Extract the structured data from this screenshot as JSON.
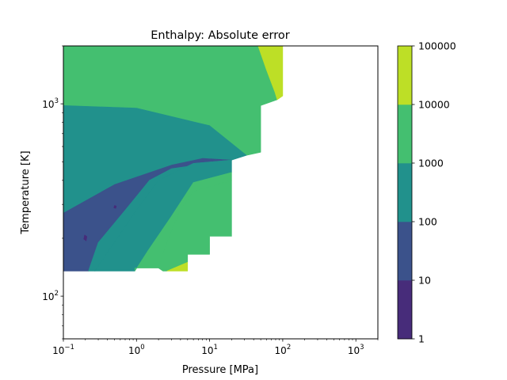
{
  "chart_data": {
    "type": "contourf",
    "title": "Enthalpy: Absolute error",
    "xlabel": "Pressure [MPa]",
    "ylabel": "Temperature [K]",
    "x_scale": "log",
    "y_scale": "log",
    "xlim": [
      0.1,
      2000
    ],
    "ylim": [
      60,
      2000
    ],
    "x_ticks": [
      {
        "value": 0.1,
        "base": "10",
        "exp": "−1"
      },
      {
        "value": 1,
        "base": "10",
        "exp": "0"
      },
      {
        "value": 10,
        "base": "10",
        "exp": "1"
      },
      {
        "value": 100,
        "base": "10",
        "exp": "2"
      },
      {
        "value": 1000,
        "base": "10",
        "exp": "3"
      }
    ],
    "y_ticks": [
      {
        "value": 100,
        "base": "10",
        "exp": "2"
      },
      {
        "value": 1000,
        "base": "10",
        "exp": "3"
      }
    ],
    "colorbar": {
      "scale": "log",
      "levels": [
        1,
        10,
        100,
        1000,
        10000,
        100000
      ],
      "labels": [
        "1",
        "10",
        "100",
        "1000",
        "10000",
        "100000"
      ],
      "colors": [
        "#472c7a",
        "#3b528b",
        "#21918c",
        "#44bf70",
        "#bddf26"
      ]
    },
    "regions": [
      {
        "level_index": 3,
        "points": [
          [
            0.1,
            2000
          ],
          [
            46,
            2000
          ],
          [
            60,
            1500
          ],
          [
            78,
            1150
          ],
          [
            84,
            1050
          ],
          [
            50,
            980
          ],
          [
            50,
            560
          ],
          [
            32,
            540
          ],
          [
            10,
            770
          ],
          [
            1,
            950
          ],
          [
            0.1,
            980
          ]
        ]
      },
      {
        "level_index": 4,
        "points": [
          [
            46,
            2000
          ],
          [
            100,
            2000
          ],
          [
            100,
            1100
          ],
          [
            84,
            1050
          ],
          [
            78,
            1150
          ],
          [
            60,
            1500
          ]
        ]
      },
      {
        "level_index": 2,
        "points": [
          [
            0.1,
            980
          ],
          [
            1,
            950
          ],
          [
            10,
            770
          ],
          [
            32,
            540
          ],
          [
            20,
            510
          ],
          [
            8,
            520
          ],
          [
            3,
            480
          ],
          [
            0.5,
            380
          ],
          [
            0.1,
            270
          ]
        ]
      },
      {
        "level_index": 1,
        "points": [
          [
            0.1,
            270
          ],
          [
            0.5,
            380
          ],
          [
            3,
            480
          ],
          [
            8,
            520
          ],
          [
            20,
            510
          ],
          [
            3,
            460
          ],
          [
            1.5,
            400
          ],
          [
            0.7,
            280
          ],
          [
            0.3,
            190
          ],
          [
            0.22,
            135
          ],
          [
            0.1,
            135
          ]
        ]
      },
      {
        "level_index": 2,
        "points": [
          [
            0.22,
            135
          ],
          [
            0.3,
            190
          ],
          [
            0.7,
            280
          ],
          [
            1.5,
            400
          ],
          [
            3,
            460
          ],
          [
            20,
            510
          ],
          [
            6,
            490
          ],
          [
            2,
            400
          ],
          [
            1,
            280
          ],
          [
            0.5,
            190
          ],
          [
            0.27,
            135
          ]
        ]
      },
      {
        "level_index": 2,
        "points": [
          [
            0.27,
            135
          ],
          [
            0.5,
            190
          ],
          [
            1,
            280
          ],
          [
            2,
            400
          ],
          [
            6,
            490
          ],
          [
            20,
            510
          ],
          [
            20,
            440
          ],
          [
            6,
            390
          ],
          [
            3,
            260
          ],
          [
            1.4,
            170
          ],
          [
            0.95,
            135
          ]
        ]
      },
      {
        "level_index": 3,
        "points": [
          [
            0.95,
            135
          ],
          [
            1.4,
            170
          ],
          [
            3,
            260
          ],
          [
            6,
            390
          ],
          [
            20,
            440
          ],
          [
            20,
            400
          ],
          [
            6,
            350
          ],
          [
            4,
            280
          ],
          [
            3.2,
            230
          ],
          [
            2.5,
            180
          ],
          [
            2,
            140
          ],
          [
            0.95,
            140
          ]
        ]
      },
      {
        "level_index": 3,
        "points": [
          [
            2,
            140
          ],
          [
            2.5,
            180
          ],
          [
            3.2,
            230
          ],
          [
            4,
            280
          ],
          [
            6,
            350
          ],
          [
            20,
            400
          ],
          [
            20,
            205
          ],
          [
            10,
            205
          ],
          [
            10,
            165
          ],
          [
            5,
            165
          ],
          [
            5,
            150
          ],
          [
            2.6,
            135
          ],
          [
            2.3,
            135
          ]
        ]
      },
      {
        "level_index": 4,
        "points": [
          [
            2.6,
            135
          ],
          [
            5,
            150
          ],
          [
            5,
            135
          ]
        ]
      },
      {
        "level_index": 0,
        "points": [
          [
            0.19,
            198
          ],
          [
            0.205,
            194
          ],
          [
            0.21,
            204
          ],
          [
            0.195,
            208
          ]
        ]
      },
      {
        "level_index": 0,
        "points": [
          [
            0.49,
            288
          ],
          [
            0.52,
            286
          ],
          [
            0.53,
            294
          ],
          [
            0.5,
            296
          ]
        ]
      }
    ]
  }
}
